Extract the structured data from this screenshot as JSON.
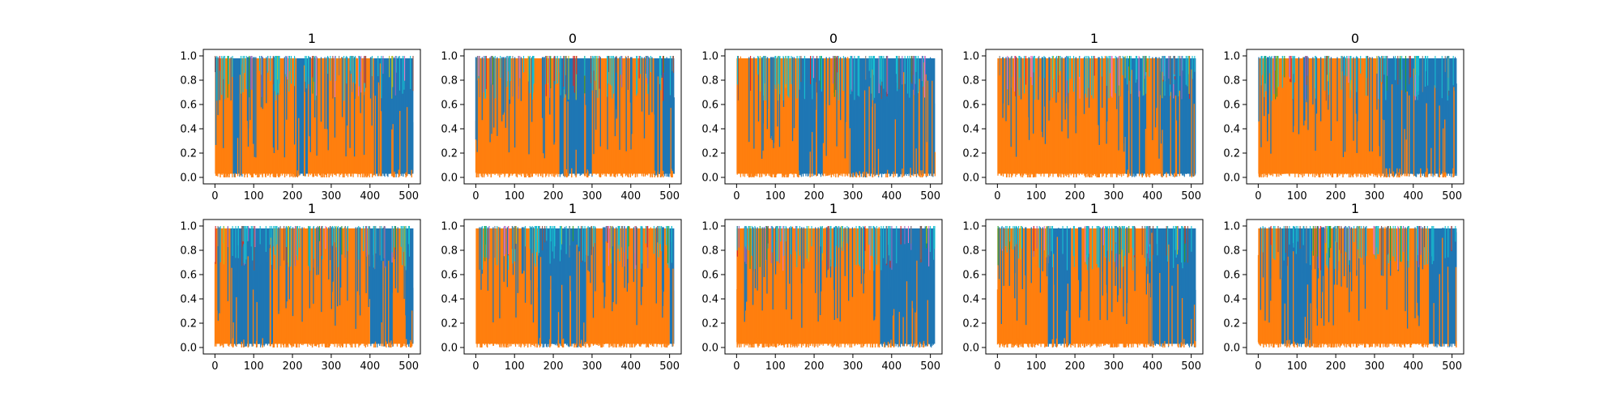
{
  "chart_data": {
    "type": "line",
    "layout": "2 rows x 5 columns",
    "series_colors": [
      "#1f77b4",
      "#ff7f0e",
      "#2ca02c",
      "#d62728",
      "#9467bd",
      "#8c564b",
      "#e377c2",
      "#7f7f7f",
      "#bcbd22",
      "#17becf"
    ],
    "xlim": [
      0,
      512
    ],
    "ylim": [
      0,
      1
    ],
    "xticks": [
      "0",
      "100",
      "200",
      "300",
      "400",
      "500"
    ],
    "yticks": [
      "0.0",
      "0.2",
      "0.4",
      "0.6",
      "0.8",
      "1.0"
    ],
    "panels": [
      {
        "title": "1",
        "orange": [
          [
            0,
            45
          ],
          [
            70,
            210
          ],
          [
            240,
            410
          ]
        ],
        "blue": [
          [
            45,
            70
          ],
          [
            210,
            240
          ],
          [
            410,
            512
          ]
        ]
      },
      {
        "title": "0",
        "orange": [
          [
            0,
            215
          ],
          [
            300,
            460
          ]
        ],
        "blue": [
          [
            215,
            300
          ],
          [
            460,
            512
          ]
        ]
      },
      {
        "title": "0",
        "orange": [
          [
            0,
            160
          ],
          [
            225,
            290
          ]
        ],
        "blue": [
          [
            160,
            225
          ],
          [
            290,
            512
          ]
        ]
      },
      {
        "title": "1",
        "orange": [
          [
            0,
            330
          ],
          [
            385,
            420
          ]
        ],
        "blue": [
          [
            330,
            385
          ],
          [
            420,
            512
          ]
        ]
      },
      {
        "title": "0",
        "orange": [
          [
            0,
            320
          ]
        ],
        "blue": [
          [
            320,
            512
          ]
        ]
      },
      {
        "title": "1",
        "orange": [
          [
            0,
            40
          ],
          [
            150,
            400
          ],
          [
            460,
            490
          ]
        ],
        "blue": [
          [
            40,
            150
          ],
          [
            400,
            460
          ],
          [
            490,
            512
          ]
        ]
      },
      {
        "title": "1",
        "orange": [
          [
            0,
            160
          ],
          [
            285,
            500
          ]
        ],
        "blue": [
          [
            160,
            285
          ],
          [
            500,
            512
          ]
        ]
      },
      {
        "title": "1",
        "orange": [
          [
            0,
            370
          ]
        ],
        "blue": [
          [
            370,
            512
          ]
        ]
      },
      {
        "title": "1",
        "orange": [
          [
            0,
            130
          ],
          [
            190,
            390
          ]
        ],
        "blue": [
          [
            130,
            190
          ],
          [
            390,
            512
          ]
        ]
      },
      {
        "title": "1",
        "orange": [
          [
            0,
            60
          ],
          [
            140,
            440
          ]
        ],
        "blue": [
          [
            60,
            140
          ],
          [
            440,
            512
          ]
        ]
      }
    ]
  }
}
